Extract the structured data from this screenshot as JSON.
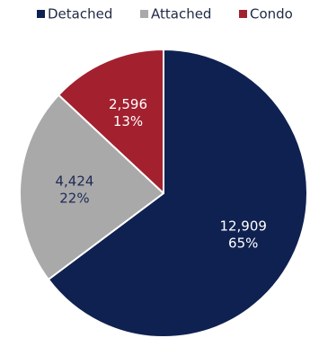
{
  "chart_data": {
    "type": "pie",
    "title": "",
    "legend_position": "top",
    "start_angle_deg": 0,
    "direction": "clockwise",
    "slices": [
      {
        "name": "Detached",
        "value": 12909,
        "value_label": "12,909",
        "percent_label": "65%",
        "color": "#0f2150",
        "label_color": "#ffffff"
      },
      {
        "name": "Attached",
        "value": 4424,
        "value_label": "4,424",
        "percent_label": "22%",
        "color": "#a9a9a9",
        "label_color": "#1f2a55"
      },
      {
        "name": "Condo",
        "value": 2596,
        "value_label": "2,596",
        "percent_label": "13%",
        "color": "#a3202f",
        "label_color": "#ffffff"
      }
    ]
  }
}
